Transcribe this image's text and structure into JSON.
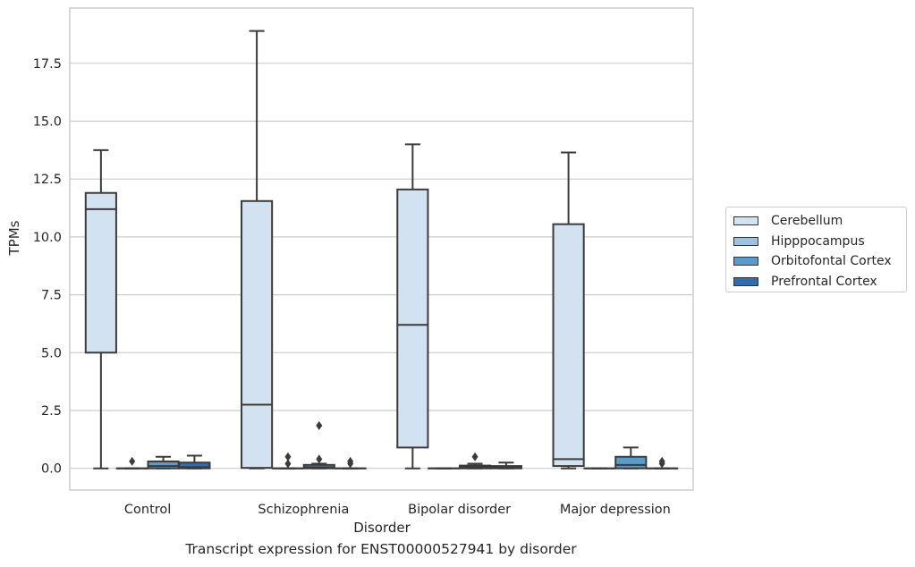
{
  "chart_data": {
    "type": "boxplot",
    "title": "",
    "caption": "Transcript expression for ENST00000527941 by disorder",
    "xlabel": "Disorder",
    "ylabel": "TPMs",
    "ylim": [
      -0.9,
      19.8
    ],
    "yticks": [
      "0.0",
      "2.5",
      "5.0",
      "7.5",
      "10.0",
      "12.5",
      "15.0",
      "17.5"
    ],
    "ytick_values": [
      0,
      2.5,
      5,
      7.5,
      10,
      12.5,
      15,
      17.5
    ],
    "grid": "horizontal",
    "legend_position": "right",
    "categories": [
      "Control",
      "Schizophrenia",
      "Bipolar disorder",
      "Major depression"
    ],
    "series": [
      {
        "name": "Cerebellum",
        "color": "#d3e2f0",
        "boxes": [
          {
            "whislo": 0.0,
            "q1": 5.0,
            "med": 11.2,
            "q3": 11.9,
            "whishi": 13.75,
            "fliers": []
          },
          {
            "whislo": 0.0,
            "q1": 0.02,
            "med": 2.75,
            "q3": 11.55,
            "whishi": 18.9,
            "fliers": []
          },
          {
            "whislo": 0.0,
            "q1": 0.9,
            "med": 6.2,
            "q3": 12.05,
            "whishi": 14.0,
            "fliers": []
          },
          {
            "whislo": 0.0,
            "q1": 0.1,
            "med": 0.4,
            "q3": 10.55,
            "whishi": 13.65,
            "fliers": []
          }
        ]
      },
      {
        "name": "Hipppocampus",
        "color": "#9cc2de",
        "boxes": [
          {
            "whislo": 0.0,
            "q1": 0.0,
            "med": 0.0,
            "q3": 0.0,
            "whishi": 0.0,
            "fliers": [
              0.3
            ]
          },
          {
            "whislo": 0.0,
            "q1": 0.0,
            "med": 0.0,
            "q3": 0.0,
            "whishi": 0.0,
            "fliers": [
              0.2,
              0.5
            ]
          },
          {
            "whislo": 0.0,
            "q1": 0.0,
            "med": 0.0,
            "q3": 0.0,
            "whishi": 0.0,
            "fliers": []
          },
          {
            "whislo": 0.0,
            "q1": 0.0,
            "med": 0.0,
            "q3": 0.0,
            "whishi": 0.0,
            "fliers": []
          }
        ]
      },
      {
        "name": "Orbitofontal Cortex",
        "color": "#5b9bc9",
        "boxes": [
          {
            "whislo": 0.0,
            "q1": 0.0,
            "med": 0.1,
            "q3": 0.3,
            "whishi": 0.5,
            "fliers": []
          },
          {
            "whislo": 0.0,
            "q1": 0.0,
            "med": 0.05,
            "q3": 0.15,
            "whishi": 0.2,
            "fliers": [
              0.4,
              1.85
            ]
          },
          {
            "whislo": 0.0,
            "q1": 0.0,
            "med": 0.05,
            "q3": 0.12,
            "whishi": 0.2,
            "fliers": [
              0.5
            ]
          },
          {
            "whislo": 0.0,
            "q1": 0.0,
            "med": 0.15,
            "q3": 0.5,
            "whishi": 0.9,
            "fliers": []
          }
        ]
      },
      {
        "name": "Prefrontal Cortex",
        "color": "#2f6ead",
        "boxes": [
          {
            "whislo": 0.0,
            "q1": 0.0,
            "med": 0.05,
            "q3": 0.25,
            "whishi": 0.55,
            "fliers": []
          },
          {
            "whislo": 0.0,
            "q1": 0.0,
            "med": 0.0,
            "q3": 0.0,
            "whishi": 0.0,
            "fliers": [
              0.2,
              0.3
            ]
          },
          {
            "whislo": 0.0,
            "q1": 0.0,
            "med": 0.03,
            "q3": 0.1,
            "whishi": 0.25,
            "fliers": []
          },
          {
            "whislo": 0.0,
            "q1": 0.0,
            "med": 0.0,
            "q3": 0.0,
            "whishi": 0.0,
            "fliers": [
              0.2,
              0.3
            ]
          }
        ]
      }
    ]
  }
}
